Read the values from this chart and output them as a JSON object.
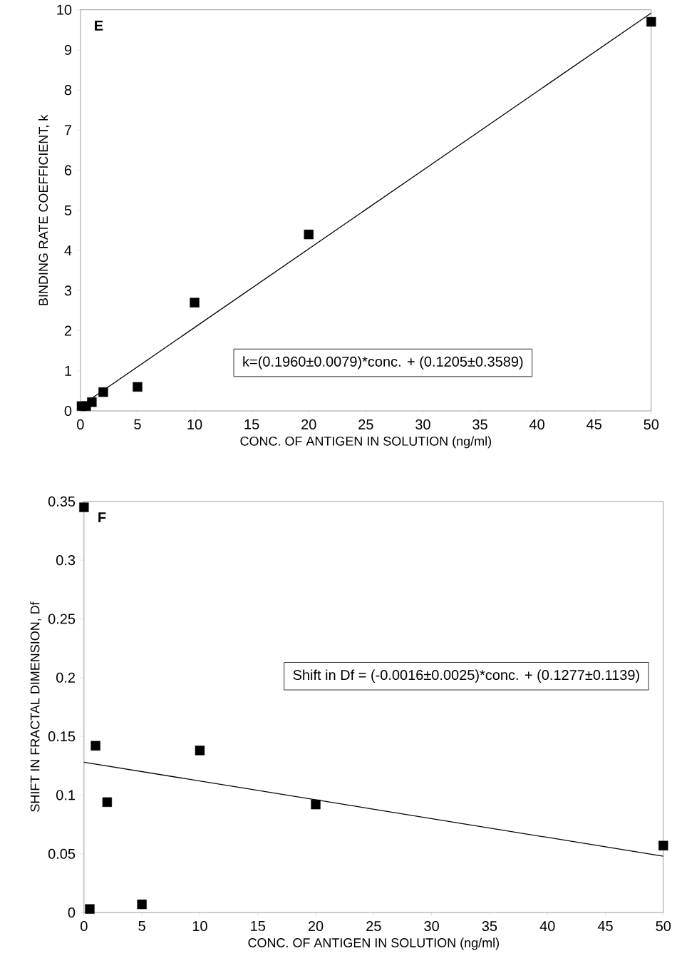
{
  "chart_data": [
    {
      "type": "scatter",
      "xlabel": "CONC. OF ANTIGEN IN SOLUTION (ng/ml)",
      "ylabel": "BINDING RATE COEFFICIENT, k",
      "annotations": [
        "E",
        "k=(0.1960±0.0079)*conc. + (0.1205±0.3589)"
      ],
      "xlim": [
        0,
        50
      ],
      "ylim": [
        0,
        10
      ],
      "xticks": [
        0,
        5,
        10,
        15,
        20,
        25,
        30,
        35,
        40,
        45,
        50
      ],
      "yticks": [
        0,
        1,
        2,
        3,
        4,
        5,
        6,
        7,
        8,
        9,
        10
      ],
      "grid": false,
      "series": [
        {
          "marker": "square",
          "color": "#000000",
          "x": [
            0.1,
            0.5,
            1,
            2,
            5,
            10,
            20,
            50
          ],
          "values": [
            0.12,
            0.12,
            0.22,
            0.47,
            0.6,
            2.7,
            4.4,
            9.7
          ]
        },
        {
          "type": "line",
          "color": "#000000",
          "x": [
            0,
            50
          ],
          "values": [
            0.12,
            9.92
          ]
        }
      ]
    },
    {
      "type": "scatter",
      "xlabel": "CONC. OF ANTIGEN IN SOLUTION (ng/ml)",
      "ylabel": "SHIFT  IN FRACTAL DIMENSION, Df",
      "annotations": [
        "F",
        "Shift in Df = (-0.0016±0.0025)*conc. + (0.1277±0.1139)"
      ],
      "xlim": [
        0,
        50
      ],
      "ylim": [
        0,
        0.35
      ],
      "xticks": [
        0,
        5,
        10,
        15,
        20,
        25,
        30,
        35,
        40,
        45,
        50
      ],
      "yticks": [
        0,
        0.05,
        0.1,
        0.15,
        0.2,
        0.25,
        0.3,
        0.35
      ],
      "grid": false,
      "series": [
        {
          "marker": "square",
          "color": "#000000",
          "x": [
            0,
            0.5,
            1,
            2,
            5,
            10,
            20,
            50
          ],
          "values": [
            0.345,
            0.003,
            0.142,
            0.094,
            0.007,
            0.138,
            0.092,
            0.057
          ]
        },
        {
          "type": "line",
          "color": "#000000",
          "x": [
            0,
            50
          ],
          "values": [
            0.128,
            0.048
          ]
        }
      ]
    }
  ]
}
